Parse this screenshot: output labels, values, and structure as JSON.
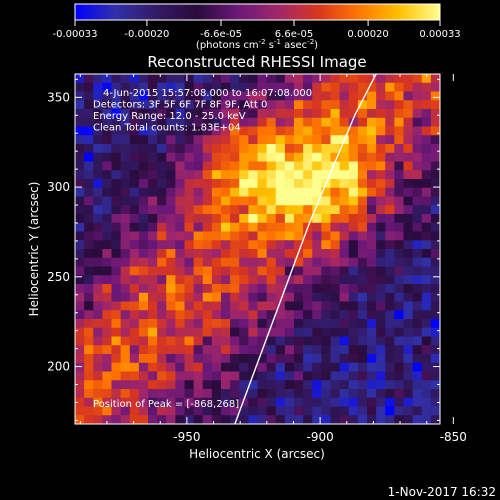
{
  "chart_data": {
    "type": "heatmap",
    "title": "Reconstructed RHESSI Image",
    "xlabel": "Heliocentric X (arcsec)",
    "ylabel": "Heliocentric Y (arcsec)",
    "x_ticks": [
      "-950",
      "-900",
      "-850"
    ],
    "x_tick_values": [
      -950,
      -900,
      -850
    ],
    "y_ticks": [
      "200",
      "250",
      "300",
      "350"
    ],
    "y_tick_values": [
      200,
      250,
      300,
      350
    ],
    "xlim": [
      -992,
      -855
    ],
    "ylim": [
      168,
      363
    ],
    "colorbar": {
      "tick_labels": [
        "-0.00033",
        "-0.00020",
        "-6.6e-05",
        "6.6e-05",
        "0.00020",
        "0.00033"
      ],
      "tick_values": [
        -0.00033,
        -0.0002,
        -6.6e-05,
        6.6e-05,
        0.0002,
        0.00033
      ],
      "range": [
        -0.00033,
        0.00033
      ],
      "unit_prefix": "(photons cm",
      "unit_exp1": "-2",
      "unit_mid": " s",
      "unit_exp2": "-1",
      "unit_mid2": " asec",
      "unit_exp3": "-2",
      "unit_suffix": ")"
    },
    "annotations": [
      "4-Jun-2015 15:57:08.000 to 16:07:08.000",
      "Detectors: 3F 5F 6F 7F 8F 9F, Att 0",
      "Energy Range: 12.0 - 25.0 keV",
      "Clean     Total counts: 1.83E+04"
    ],
    "peak_label": "Position of Peak = [-868,268]",
    "peak": {
      "x": -868,
      "y": 268
    },
    "limb": [
      {
        "x": -932,
        "y": 168
      },
      {
        "x": -919,
        "y": 220
      },
      {
        "x": -904,
        "y": 280
      },
      {
        "x": -887,
        "y": 340
      },
      {
        "x": -879,
        "y": 363
      }
    ],
    "colormap": [
      "#0000ff",
      "#3030a8",
      "#331a66",
      "#2a0b3c",
      "#6a1878",
      "#a0266a",
      "#d8361e",
      "#ff7700",
      "#ffc000",
      "#ffff90"
    ],
    "footer_date": "1-Nov-2017 16:32"
  }
}
